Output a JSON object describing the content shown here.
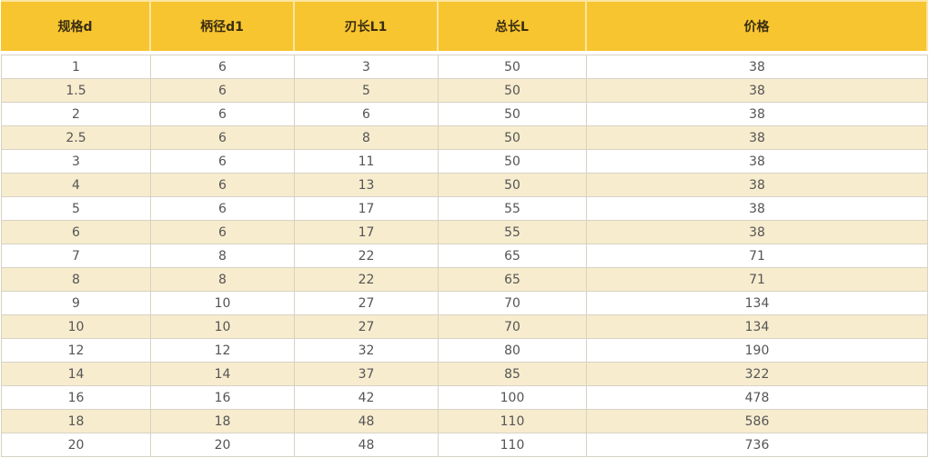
{
  "table": {
    "headers": [
      "规格d",
      "柄径d1",
      "刃长L1",
      "总长L",
      "价格"
    ],
    "rows": [
      [
        "1",
        "6",
        "3",
        "50",
        "38"
      ],
      [
        "1.5",
        "6",
        "5",
        "50",
        "38"
      ],
      [
        "2",
        "6",
        "6",
        "50",
        "38"
      ],
      [
        "2.5",
        "6",
        "8",
        "50",
        "38"
      ],
      [
        "3",
        "6",
        "11",
        "50",
        "38"
      ],
      [
        "4",
        "6",
        "13",
        "50",
        "38"
      ],
      [
        "5",
        "6",
        "17",
        "55",
        "38"
      ],
      [
        "6",
        "6",
        "17",
        "55",
        "38"
      ],
      [
        "7",
        "8",
        "22",
        "65",
        "71"
      ],
      [
        "8",
        "8",
        "22",
        "65",
        "71"
      ],
      [
        "9",
        "10",
        "27",
        "70",
        "134"
      ],
      [
        "10",
        "10",
        "27",
        "70",
        "134"
      ],
      [
        "12",
        "12",
        "32",
        "80",
        "190"
      ],
      [
        "14",
        "14",
        "37",
        "85",
        "322"
      ],
      [
        "16",
        "16",
        "42",
        "100",
        "478"
      ],
      [
        "18",
        "18",
        "48",
        "110",
        "586"
      ],
      [
        "20",
        "20",
        "48",
        "110",
        "736"
      ]
    ]
  },
  "colors": {
    "header": "#f7c530",
    "alt_row": "#f7ecce"
  }
}
